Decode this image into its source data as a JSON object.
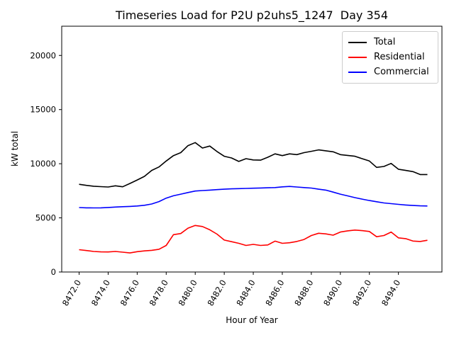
{
  "title": "Timeseries Load for P2U p2uhs5_1247  Day 354",
  "chart_data": {
    "type": "line",
    "title": "Timeseries Load for P2U p2uhs5_1247  Day 354",
    "xlabel": "Hour of Year",
    "ylabel": "kW total",
    "xlim": [
      8470.8,
      8497.0
    ],
    "ylim": [
      0,
      22700
    ],
    "grid": false,
    "legend_position": "upper right",
    "xticks": [
      "8472.0",
      "8474.0",
      "8476.0",
      "8478.0",
      "8480.0",
      "8482.0",
      "8484.0",
      "8486.0",
      "8488.0",
      "8490.0",
      "8492.0",
      "8494.0"
    ],
    "yticks": [
      0,
      5000,
      10000,
      15000,
      20000
    ],
    "x": [
      8472.0,
      8472.5,
      8473.0,
      8473.5,
      8474.0,
      8474.5,
      8475.0,
      8475.5,
      8476.0,
      8476.5,
      8477.0,
      8477.5,
      8478.0,
      8478.5,
      8479.0,
      8479.5,
      8480.0,
      8480.5,
      8481.0,
      8481.5,
      8482.0,
      8482.5,
      8483.0,
      8483.5,
      8484.0,
      8484.5,
      8485.0,
      8485.5,
      8486.0,
      8486.5,
      8487.0,
      8487.5,
      8488.0,
      8488.5,
      8489.0,
      8489.5,
      8490.0,
      8490.5,
      8491.0,
      8491.5,
      8492.0,
      8492.5,
      8493.0,
      8493.5,
      8494.0,
      8494.5,
      8495.0,
      8495.5,
      8496.0
    ],
    "series": [
      {
        "name": "Total",
        "color": "#000000",
        "values": [
          8100,
          8000,
          7920,
          7880,
          7850,
          7960,
          7870,
          8180,
          8500,
          8830,
          9380,
          9700,
          10250,
          10750,
          11020,
          11670,
          11950,
          11450,
          11630,
          11130,
          10690,
          10530,
          10210,
          10470,
          10350,
          10330,
          10600,
          10910,
          10750,
          10910,
          10840,
          11020,
          11150,
          11280,
          11190,
          11100,
          10840,
          10770,
          10690,
          10470,
          10250,
          9660,
          9750,
          10030,
          9490,
          9380,
          9270,
          9000,
          9000
        ]
      },
      {
        "name": "Residential",
        "color": "#ff0000",
        "values": [
          2060,
          1980,
          1900,
          1860,
          1850,
          1900,
          1830,
          1760,
          1880,
          1950,
          2000,
          2100,
          2450,
          3450,
          3550,
          4050,
          4300,
          4200,
          3900,
          3500,
          2950,
          2800,
          2650,
          2450,
          2550,
          2450,
          2500,
          2850,
          2650,
          2700,
          2820,
          3000,
          3370,
          3580,
          3520,
          3400,
          3690,
          3800,
          3870,
          3820,
          3740,
          3260,
          3370,
          3690,
          3150,
          3080,
          2860,
          2820,
          2930
        ]
      },
      {
        "name": "Commercial",
        "color": "#0000ff",
        "values": [
          5950,
          5930,
          5920,
          5930,
          5960,
          6000,
          6030,
          6060,
          6100,
          6160,
          6280,
          6500,
          6820,
          7040,
          7190,
          7340,
          7480,
          7520,
          7560,
          7610,
          7650,
          7680,
          7700,
          7720,
          7740,
          7760,
          7780,
          7800,
          7860,
          7900,
          7850,
          7800,
          7750,
          7650,
          7560,
          7380,
          7190,
          7030,
          6870,
          6730,
          6600,
          6490,
          6380,
          6310,
          6250,
          6190,
          6140,
          6110,
          6100
        ]
      }
    ]
  }
}
